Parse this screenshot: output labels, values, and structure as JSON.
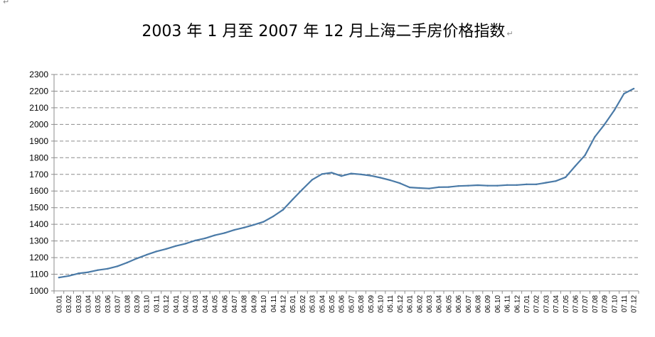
{
  "page": {
    "corner_mark": "↵",
    "paragraph_mark": "↵"
  },
  "chart_data": {
    "type": "line",
    "title": "2003 年 1 月至 2007 年 12 月上海二手房价格指数",
    "xlabel": "",
    "ylabel": "",
    "ylim": [
      1000,
      2300
    ],
    "yticks": [
      1000,
      1100,
      1200,
      1300,
      1400,
      1500,
      1600,
      1700,
      1800,
      1900,
      2000,
      2100,
      2200,
      2300
    ],
    "grid": "horizontal dashed",
    "line_color": "#4a7aa7",
    "categories": [
      "03.01",
      "03.02",
      "03.03",
      "03.04",
      "03.05",
      "03.06",
      "03.07",
      "03.08",
      "03.09",
      "03.10",
      "03.11",
      "03.12",
      "04.01",
      "04.02",
      "04.03",
      "04.04",
      "04.05",
      "04.06",
      "04.07",
      "04.08",
      "04.09",
      "04.10",
      "04.11",
      "04.12",
      "05.01",
      "05.02",
      "05.03",
      "05.04",
      "05.05",
      "05.06",
      "05.07",
      "05.08",
      "05.09",
      "05.10",
      "05.11",
      "05.12",
      "06.01",
      "06.02",
      "06.03",
      "06.04",
      "06.05",
      "06.06",
      "06.07",
      "06.08",
      "06.09",
      "06.10",
      "06.11",
      "06.12",
      "07.01",
      "07.02",
      "07.03",
      "07.04",
      "07.05",
      "07.06",
      "07.07",
      "07.08",
      "07.09",
      "07.10",
      "07.11",
      "07.12"
    ],
    "values": [
      1080,
      1090,
      1105,
      1112,
      1125,
      1133,
      1148,
      1170,
      1195,
      1217,
      1237,
      1252,
      1270,
      1284,
      1303,
      1316,
      1334,
      1348,
      1366,
      1380,
      1397,
      1415,
      1448,
      1487,
      1550,
      1610,
      1668,
      1702,
      1710,
      1690,
      1705,
      1700,
      1692,
      1680,
      1665,
      1647,
      1622,
      1618,
      1615,
      1623,
      1624,
      1630,
      1632,
      1635,
      1632,
      1632,
      1636,
      1636,
      1640,
      1640,
      1650,
      1660,
      1683,
      1750,
      1815,
      1925,
      2000,
      2085,
      2185,
      2215
    ]
  }
}
